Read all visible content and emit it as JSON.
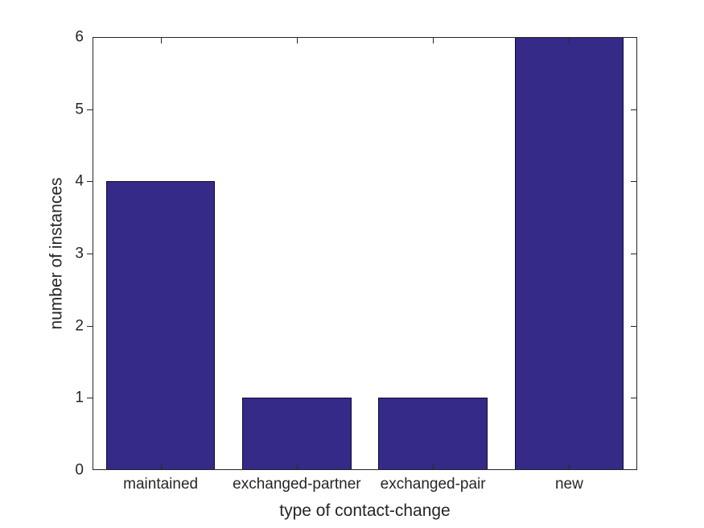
{
  "chart_data": {
    "type": "bar",
    "title": "",
    "categories": [
      "maintained",
      "exchanged-partner",
      "exchanged-pair",
      "new"
    ],
    "values": [
      4,
      1,
      1,
      6
    ],
    "xlabel": "type of contact-change",
    "ylabel": "number of instances",
    "yticks": [
      0,
      1,
      2,
      3,
      4,
      5,
      6
    ],
    "ylim": [
      0,
      6
    ],
    "grid": "off",
    "legend": "none",
    "bar_width_fraction": 0.8,
    "colors": {
      "bar_fill": "#352A87",
      "bar_edge": "#0D0D33",
      "axis": "#262626",
      "text": "#262626",
      "background": "#FFFFFF"
    }
  }
}
